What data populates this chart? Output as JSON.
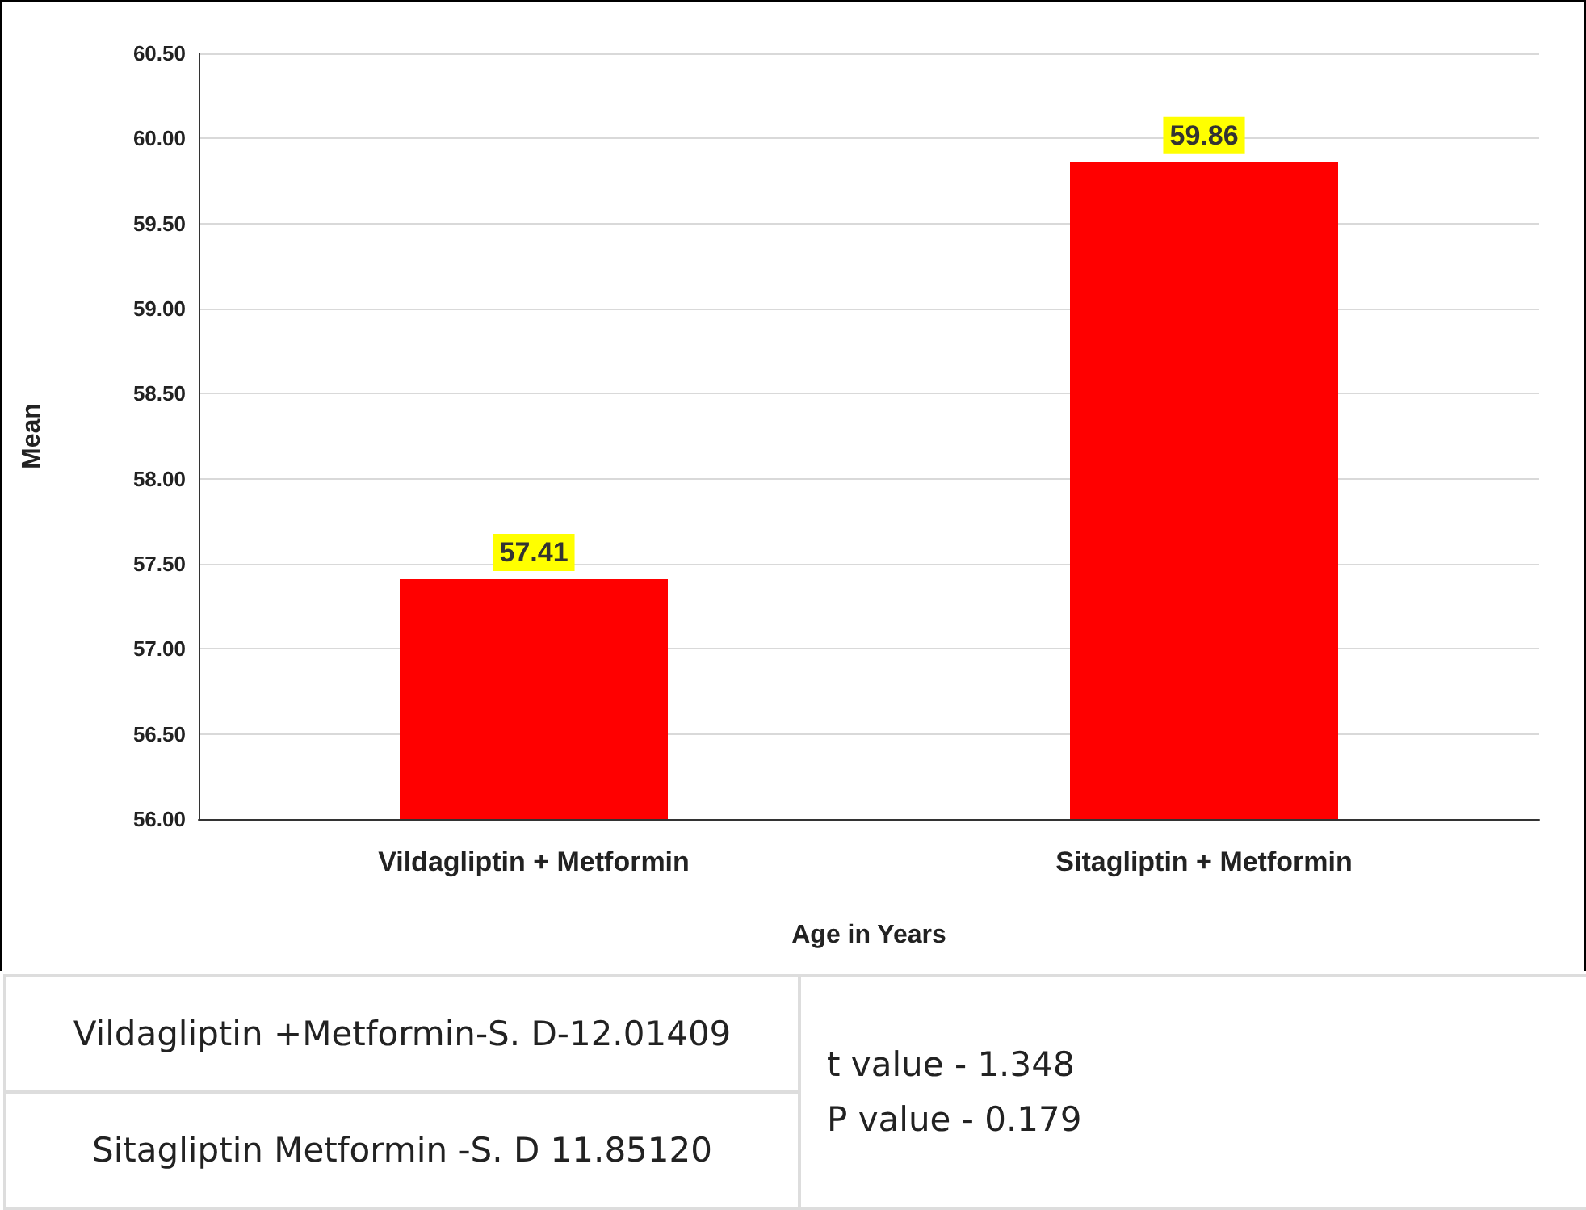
{
  "chart_data": {
    "type": "bar",
    "xlabel": "Age in Years",
    "ylabel": "Mean",
    "categories": [
      "Vildagliptin + Metformin",
      "Sitagliptin + Metformin"
    ],
    "values": [
      57.41,
      59.86
    ],
    "color": "#ff0000",
    "data_labels": true,
    "ylim": [
      56,
      60.5
    ],
    "yticks": [
      {
        "value": 56,
        "label": "56.00"
      },
      {
        "value": 56.5,
        "label": "56.50"
      },
      {
        "value": 57,
        "label": "57.00"
      },
      {
        "value": 57.5,
        "label": "57.50"
      },
      {
        "value": 58,
        "label": "58.00"
      },
      {
        "value": 58.5,
        "label": "58.50"
      },
      {
        "value": 59,
        "label": "59.00"
      },
      {
        "value": 59.5,
        "label": "59.50"
      },
      {
        "value": 60,
        "label": "60.00"
      },
      {
        "value": 60.5,
        "label": "60.50"
      }
    ],
    "grid": "y",
    "annotations": [
      "Vildagliptin +Metformin-S. D-12.01409",
      "Sitagliptin Metformin -S. D 11.85120",
      "t value - 1.348",
      "P value - 0.179"
    ]
  }
}
